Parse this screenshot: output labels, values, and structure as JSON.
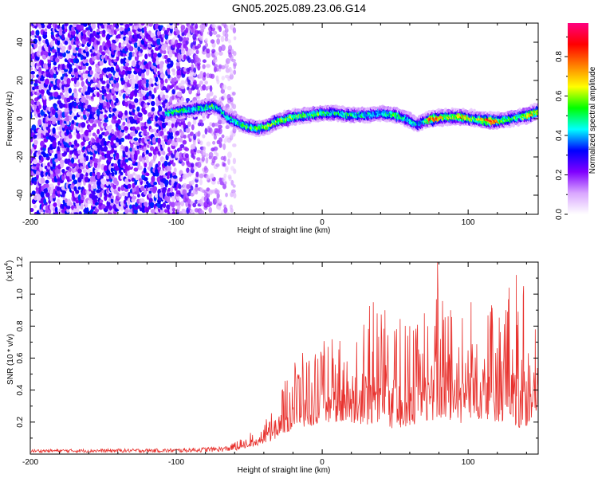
{
  "title": "GN05.2025.089.23.06.G14",
  "chart_data": [
    {
      "type": "heatmap",
      "name": "spectrogram",
      "xlabel": "Height of straight line (km)",
      "ylabel": "Frequency (Hz)",
      "xlim": [
        -200,
        148
      ],
      "ylim": [
        -50,
        50
      ],
      "xticks": [
        -200,
        -100,
        0,
        100
      ],
      "yticks": [
        -40,
        -20,
        0,
        20,
        40
      ],
      "colorbar": {
        "label": "Normalized spectral amplitude",
        "range": [
          0,
          0.97
        ],
        "ticks": [
          0.0,
          0.2,
          0.4,
          0.6,
          0.8
        ],
        "colors": [
          "#ffffff",
          "#d9a6ff",
          "#8000ff",
          "#0000ff",
          "#00ffff",
          "#00ff00",
          "#ffff00",
          "#ff8000",
          "#ff0000",
          "#ff0080"
        ]
      },
      "ridge": {
        "x": [
          -107,
          -100,
          -90,
          -80,
          -75,
          -70,
          -65,
          -55,
          -45,
          -38,
          -30,
          -20,
          -10,
          0,
          10,
          20,
          30,
          40,
          50,
          58,
          65,
          70,
          75,
          85,
          95,
          105,
          115,
          122,
          128,
          135,
          142,
          148
        ],
        "y": [
          3,
          4,
          5,
          6,
          7,
          5,
          1,
          -3,
          -5,
          -4,
          -1,
          1,
          2,
          3,
          3,
          2,
          2,
          3,
          2,
          0,
          -3,
          -1,
          0,
          1,
          1,
          0,
          -1,
          -1,
          0,
          1,
          2,
          4
        ],
        "amplitude": [
          0.45,
          0.5,
          0.45,
          0.45,
          0.5,
          0.45,
          0.45,
          0.5,
          0.5,
          0.55,
          0.55,
          0.55,
          0.5,
          0.5,
          0.45,
          0.5,
          0.45,
          0.45,
          0.5,
          0.45,
          0.4,
          0.45,
          0.85,
          0.55,
          0.7,
          0.55,
          0.85,
          0.55,
          0.5,
          0.55,
          0.7,
          0.6
        ]
      },
      "noise_region_x": [
        -200,
        -60
      ],
      "noise_amplitude_range": [
        0.05,
        0.35
      ]
    },
    {
      "type": "line",
      "name": "snr",
      "color": "#e8322e",
      "xlabel": "Height of straight line (km)",
      "ylabel": "SNR (10 * v/v)",
      "yscale_label": "(x10",
      "yscale_exp": "4",
      "yscale_close": ")",
      "xlim": [
        -200,
        148
      ],
      "ylim": [
        0,
        1.2
      ],
      "xticks": [
        -200,
        -100,
        0,
        100
      ],
      "yticks": [
        0.2,
        0.4,
        0.6,
        0.8,
        1.0,
        1.2
      ],
      "ytick_labels": [
        "0.2",
        "0.4",
        "0.6",
        "0.8",
        "1.0",
        "1.2"
      ],
      "envelope": {
        "x": [
          -200,
          -100,
          -65,
          -55,
          -45,
          -35,
          -28,
          -20,
          -10,
          0,
          10,
          20,
          30,
          40,
          50,
          60,
          70,
          80,
          90,
          100,
          110,
          120,
          128,
          135,
          142,
          148
        ],
        "base": [
          0.01,
          0.01,
          0.015,
          0.03,
          0.05,
          0.08,
          0.12,
          0.15,
          0.17,
          0.2,
          0.2,
          0.18,
          0.18,
          0.2,
          0.15,
          0.18,
          0.2,
          0.22,
          0.18,
          0.2,
          0.22,
          0.2,
          0.2,
          0.15,
          0.18,
          0.2
        ],
        "peak": [
          0.03,
          0.035,
          0.05,
          0.1,
          0.16,
          0.25,
          0.45,
          0.6,
          0.65,
          0.72,
          0.75,
          0.75,
          0.92,
          0.95,
          0.95,
          0.75,
          0.92,
          1.08,
          0.9,
          0.88,
          0.95,
          0.9,
          1.02,
          1.05,
          0.9,
          0.75
        ]
      },
      "spikes": [
        [
          -38,
          0.18
        ],
        [
          -24,
          0.46
        ],
        [
          -15,
          0.48
        ],
        [
          35,
          0.95
        ],
        [
          43,
          0.9
        ],
        [
          60,
          0.8
        ],
        [
          70,
          0.88
        ],
        [
          79,
          1.2
        ],
        [
          88,
          0.9
        ],
        [
          96,
          0.85
        ],
        [
          102,
          0.95
        ],
        [
          116,
          0.93
        ],
        [
          128,
          1.04
        ],
        [
          133,
          1.12
        ],
        [
          138,
          1.05
        ],
        [
          146,
          0.78
        ]
      ]
    }
  ]
}
